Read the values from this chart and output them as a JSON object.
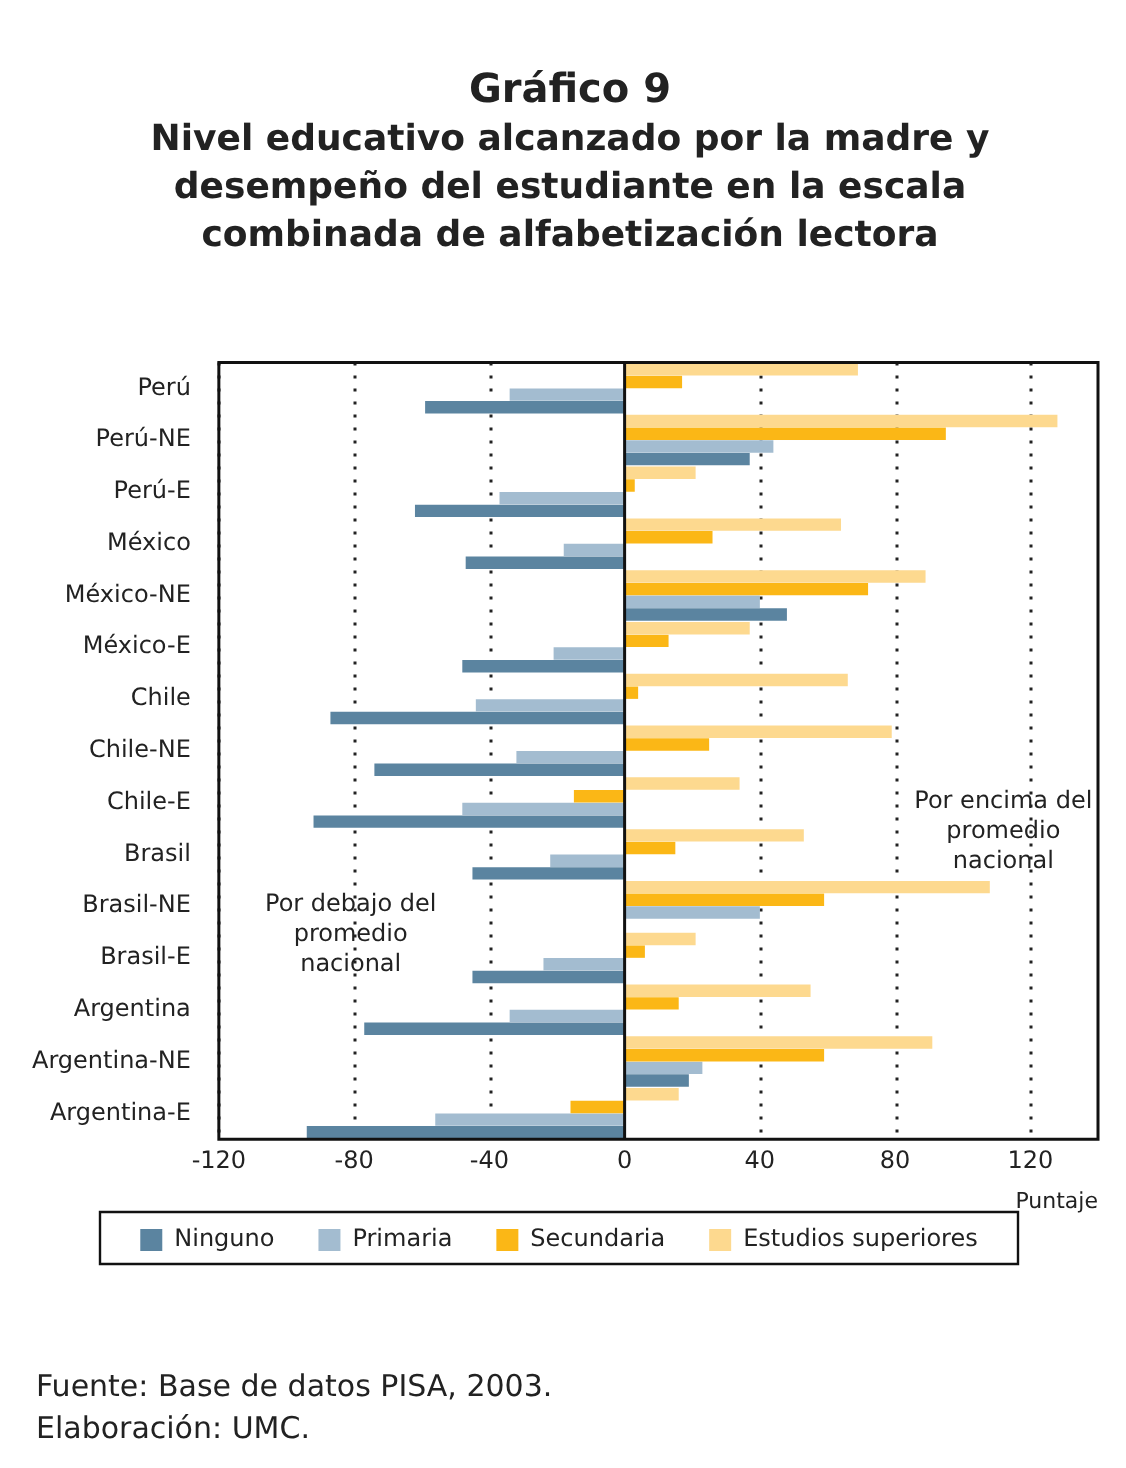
{
  "chart_data": {
    "type": "bar",
    "orientation": "horizontal",
    "title": "Gráfico 9",
    "subtitle": "Nivel educativo alcanzado por la madre y desempeño del estudiante en la escala combinada de alfabetización lectora",
    "xlabel": "Puntaje",
    "categories": [
      "Perú",
      "Perú-NE",
      "Perú-E",
      "México",
      "México-NE",
      "México-E",
      "Chile",
      "Chile-NE",
      "Chile-E",
      "Brasil",
      "Brasil-NE",
      "Brasil-E",
      "Argentina",
      "Argentina-NE",
      "Argentina-E"
    ],
    "series": [
      {
        "name": "Ninguno",
        "color": "#5b84a0",
        "values": [
          -59,
          37,
          -62,
          -47,
          48,
          -48,
          -87,
          -74,
          -92,
          -45,
          null,
          -45,
          -77,
          19,
          -94
        ]
      },
      {
        "name": "Primaria",
        "color": "#a3bcd0",
        "values": [
          -34,
          44,
          -37,
          -18,
          40,
          -21,
          -44,
          -32,
          -48,
          -22,
          40,
          -24,
          -34,
          23,
          -56
        ]
      },
      {
        "name": "Secundaria",
        "color": "#fbb716",
        "values": [
          17,
          95,
          3,
          26,
          72,
          13,
          4,
          25,
          -15,
          15,
          59,
          6,
          16,
          59,
          -16
        ]
      },
      {
        "name": "Estudios superiores",
        "color": "#fdd98f",
        "values": [
          69,
          128,
          21,
          64,
          89,
          37,
          66,
          79,
          34,
          53,
          108,
          21,
          55,
          91,
          16
        ]
      }
    ],
    "xlim": [
      -120,
      140
    ],
    "xticks": [
      -120,
      -80,
      -40,
      0,
      40,
      80,
      120
    ],
    "grid": "x",
    "legend": "bottom",
    "annotations": [
      "Por debajo del promedio nacional",
      "Por encima del promedio nacional",
      "Fuente: Base de datos PISA, 2003.",
      "Elaboración: UMC."
    ]
  }
}
